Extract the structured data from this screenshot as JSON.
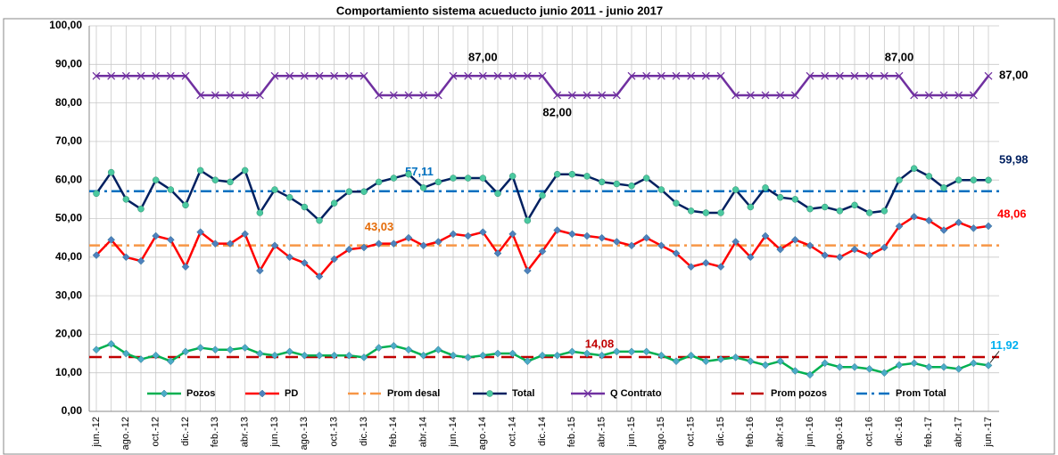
{
  "chart_data": {
    "type": "line",
    "title": "Comportamiento sistema acueducto junio 2011 -  junio 2017",
    "categories": [
      "jun.-12",
      null,
      "ago.-12",
      null,
      "oct.-12",
      null,
      "dic.-12",
      null,
      "feb.-13",
      null,
      "abr.-13",
      null,
      "jun.-13",
      null,
      "ago.-13",
      null,
      "oct.-13",
      null,
      "dic.-13",
      null,
      "feb.-14",
      null,
      "abr.-14",
      null,
      "jun.-14",
      null,
      "ago.-14",
      null,
      "oct.-14",
      null,
      "dic.-14",
      null,
      "feb.-15",
      null,
      "abr.-15",
      null,
      "jun.-15",
      null,
      "ago.-15",
      null,
      "oct.-15",
      null,
      "dic.-15",
      null,
      "feb.-16",
      null,
      "abr.-16",
      null,
      "jun.-16",
      null,
      "ago.-16",
      null,
      "oct.-16",
      null,
      "dic.-16",
      null,
      "feb.-17",
      null,
      "abr.-17",
      null,
      "jun.-17"
    ],
    "ylim": [
      0,
      100
    ],
    "yticks": [
      {
        "value": 0,
        "label": "0,00"
      },
      {
        "value": 10,
        "label": "10,00"
      },
      {
        "value": 20,
        "label": "20,00"
      },
      {
        "value": 30,
        "label": "30,00"
      },
      {
        "value": 40,
        "label": "40,00"
      },
      {
        "value": 50,
        "label": "50,00"
      },
      {
        "value": 60,
        "label": "60,00"
      },
      {
        "value": 70,
        "label": "70,00"
      },
      {
        "value": 80,
        "label": "80,00"
      },
      {
        "value": 90,
        "label": "90,00"
      },
      {
        "value": 100,
        "label": "100,00"
      }
    ],
    "grid": true,
    "legend": "bottom",
    "series": [
      {
        "name": "Pozos",
        "color": "#00b050",
        "marker": "diamond",
        "marker_color": "#4bacc6",
        "label_color": "#00b0f0",
        "values": [
          16,
          17.5,
          15,
          13.5,
          14.5,
          13,
          15.5,
          16.5,
          16,
          16,
          16.5,
          15,
          14.5,
          15.5,
          14.5,
          14.5,
          14.5,
          14.5,
          14,
          16.5,
          17,
          16,
          14.5,
          16,
          14.5,
          14,
          14.5,
          15,
          15,
          13,
          14.5,
          14.5,
          15.5,
          15,
          14.5,
          15.5,
          15.5,
          15.5,
          14.5,
          13,
          14.5,
          13,
          13.5,
          14,
          13,
          12,
          13,
          10.5,
          9.5,
          12.5,
          11.5,
          11.5,
          11,
          10,
          12,
          12.5,
          11.5,
          11.5,
          11,
          12.5,
          11.92
        ],
        "value_labels": [
          null,
          null,
          null,
          null,
          null,
          null,
          null,
          null,
          null,
          null,
          null,
          null,
          null,
          null,
          null,
          null,
          null,
          null,
          null,
          null,
          null,
          null,
          null,
          null,
          null,
          null,
          null,
          null,
          null,
          null,
          null,
          null,
          null,
          null,
          null,
          null,
          null,
          null,
          null,
          null,
          null,
          null,
          null,
          null,
          null,
          null,
          null,
          null,
          null,
          null,
          null,
          null,
          null,
          null,
          null,
          null,
          null,
          null,
          null,
          null,
          "11,92"
        ]
      },
      {
        "name": "PD",
        "color": "#ff0000",
        "marker": "diamond",
        "marker_color": "#4f81bd",
        "label_color": "#ff0000",
        "values": [
          40.5,
          44.5,
          40,
          39,
          45.5,
          44.5,
          37.5,
          46.5,
          43.5,
          43.5,
          46,
          36.5,
          43,
          40,
          38.5,
          35,
          39.5,
          42,
          42.5,
          43.5,
          43.5,
          45,
          43,
          44,
          46,
          45.5,
          46.5,
          41,
          46,
          36.5,
          41.5,
          47,
          46,
          45.5,
          45,
          44,
          43,
          45,
          43,
          41,
          37.5,
          38.5,
          37.5,
          44,
          40,
          45.5,
          42,
          44.5,
          43,
          40.5,
          40,
          42,
          40.5,
          42.5,
          48,
          50.5,
          49.5,
          47,
          49,
          47.5,
          48.06
        ],
        "value_labels": [
          null,
          null,
          null,
          null,
          null,
          null,
          null,
          null,
          null,
          null,
          null,
          null,
          null,
          null,
          null,
          null,
          null,
          null,
          null,
          null,
          null,
          null,
          null,
          null,
          null,
          null,
          null,
          null,
          null,
          null,
          null,
          null,
          null,
          null,
          null,
          null,
          null,
          null,
          null,
          null,
          null,
          null,
          null,
          null,
          null,
          null,
          null,
          null,
          null,
          null,
          null,
          null,
          null,
          null,
          null,
          null,
          null,
          null,
          null,
          null,
          "48,06"
        ]
      },
      {
        "name": "Prom desal",
        "color": "#f79646",
        "dash": "dashdot",
        "label_color": "#e46c0a",
        "value": 43.03,
        "value_label": "43,03"
      },
      {
        "name": "Total",
        "color": "#002060",
        "marker": "circle",
        "marker_color": "#4bc9a0",
        "label_color": "#002060",
        "values": [
          56.5,
          62,
          55,
          52.5,
          60,
          57.5,
          53.5,
          62.5,
          60,
          59.5,
          62.5,
          51.5,
          57.5,
          55.5,
          53,
          49.5,
          54,
          57,
          57,
          59.5,
          60.5,
          61.5,
          58,
          59.5,
          60.5,
          60.5,
          60.5,
          56.5,
          61,
          49.5,
          56,
          61.5,
          61.5,
          61,
          59.5,
          59,
          58.5,
          60.5,
          57.5,
          54,
          52,
          51.5,
          51.5,
          57.5,
          53,
          58,
          55.5,
          55,
          52.5,
          53,
          52,
          53.5,
          51.5,
          52,
          60,
          63,
          61,
          58,
          60,
          60,
          59.98
        ],
        "value_labels": [
          null,
          null,
          null,
          null,
          null,
          null,
          null,
          null,
          null,
          null,
          null,
          null,
          null,
          null,
          null,
          null,
          null,
          null,
          null,
          null,
          null,
          null,
          null,
          null,
          null,
          null,
          null,
          null,
          null,
          null,
          null,
          null,
          null,
          null,
          null,
          null,
          null,
          null,
          null,
          null,
          null,
          null,
          null,
          null,
          null,
          null,
          null,
          null,
          null,
          null,
          null,
          null,
          null,
          null,
          null,
          null,
          null,
          null,
          null,
          null,
          "59,98"
        ]
      },
      {
        "name": "Q Contrato",
        "color": "#7030a0",
        "marker": "x",
        "marker_color": "#7030a0",
        "label_color": "#000000",
        "values": [
          87,
          87,
          87,
          87,
          87,
          87,
          87,
          82,
          82,
          82,
          82,
          82,
          87,
          87,
          87,
          87,
          87,
          87,
          87,
          82,
          82,
          82,
          82,
          82,
          87,
          87,
          87,
          87,
          87,
          87,
          87,
          82,
          82,
          82,
          82,
          82,
          87,
          87,
          87,
          87,
          87,
          87,
          87,
          82,
          82,
          82,
          82,
          82,
          87,
          87,
          87,
          87,
          87,
          87,
          87,
          82,
          82,
          82,
          82,
          82,
          87
        ],
        "value_labels": [
          null,
          null,
          null,
          null,
          null,
          null,
          null,
          null,
          null,
          null,
          null,
          null,
          null,
          null,
          null,
          null,
          null,
          null,
          null,
          null,
          null,
          null,
          null,
          null,
          null,
          null,
          "87,00",
          null,
          null,
          null,
          null,
          "82,00",
          null,
          null,
          null,
          null,
          null,
          null,
          null,
          null,
          null,
          null,
          null,
          null,
          null,
          null,
          null,
          null,
          null,
          null,
          null,
          null,
          null,
          null,
          "87,00",
          null,
          null,
          null,
          null,
          null,
          "87,00"
        ]
      },
      {
        "name": "Prom pozos",
        "color": "#c00000",
        "dash": "dash",
        "label_color": "#c00000",
        "value": 14.08,
        "value_label": "14,08"
      },
      {
        "name": "Prom Total",
        "color": "#0070c0",
        "dash": "dashdot",
        "label_color": "#0070c0",
        "value": 57.11,
        "value_label": "57,11"
      }
    ]
  }
}
